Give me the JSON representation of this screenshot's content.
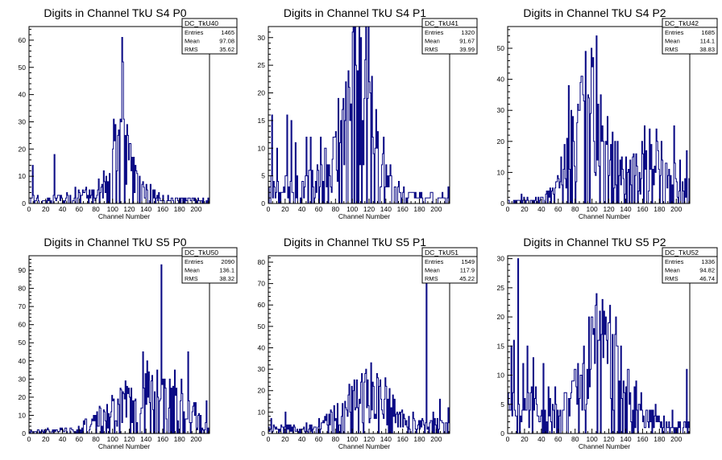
{
  "chart_data": [
    {
      "type": "histogram",
      "title": "Digits in Channel TkU S4 P0",
      "xlabel": "Channel Number",
      "xlim": [
        0,
        216
      ],
      "ylim": [
        0,
        65
      ],
      "x_ticks": [
        0,
        20,
        40,
        60,
        80,
        100,
        120,
        140,
        160,
        180,
        200
      ],
      "y_ticks": [
        0,
        10,
        20,
        30,
        40,
        50,
        60
      ],
      "stats": {
        "name": "DC_TkU40",
        "rows": [
          [
            "Entries",
            "1465"
          ],
          [
            "Mean",
            "97.08"
          ],
          [
            "RMS",
            "35.62"
          ]
        ]
      },
      "bin_width": 1,
      "peaks": [
        [
          4,
          14
        ],
        [
          10,
          3
        ],
        [
          30,
          18
        ],
        [
          45,
          4
        ],
        [
          55,
          6
        ],
        [
          75,
          5
        ],
        [
          90,
          8
        ],
        [
          100,
          20
        ],
        [
          106,
          25
        ],
        [
          110,
          30
        ],
        [
          111,
          61
        ],
        [
          113,
          31
        ],
        [
          120,
          22
        ],
        [
          128,
          12
        ],
        [
          135,
          7
        ],
        [
          150,
          5
        ],
        [
          160,
          3
        ],
        [
          185,
          2
        ],
        [
          214,
          2
        ]
      ],
      "profile": [
        [
          0,
          2
        ],
        [
          15,
          1
        ],
        [
          35,
          2
        ],
        [
          60,
          3
        ],
        [
          80,
          4
        ],
        [
          95,
          12
        ],
        [
          105,
          22
        ],
        [
          112,
          30
        ],
        [
          118,
          20
        ],
        [
          125,
          12
        ],
        [
          135,
          6
        ],
        [
          150,
          3
        ],
        [
          170,
          1.5
        ],
        [
          216,
          1
        ]
      ],
      "line_color": "#000080"
    },
    {
      "type": "histogram",
      "title": "Digits in Channel TkU S4 P1",
      "xlabel": "Channel Number",
      "xlim": [
        0,
        216
      ],
      "ylim": [
        0,
        32
      ],
      "x_ticks": [
        0,
        20,
        40,
        60,
        80,
        100,
        120,
        140,
        160,
        180,
        200
      ],
      "y_ticks": [
        0,
        5,
        10,
        15,
        20,
        25,
        30
      ],
      "stats": {
        "name": "DC_TkU41",
        "rows": [
          [
            "Entries",
            "1320"
          ],
          [
            "Mean",
            "91.67"
          ],
          [
            "RMS",
            "39.99"
          ]
        ]
      },
      "bin_width": 1,
      "peaks": [
        [
          4,
          16
        ],
        [
          10,
          10
        ],
        [
          22,
          16
        ],
        [
          27,
          15
        ],
        [
          32,
          11
        ],
        [
          45,
          12
        ],
        [
          50,
          12
        ],
        [
          62,
          12
        ],
        [
          68,
          10
        ],
        [
          76,
          8
        ],
        [
          83,
          19
        ],
        [
          88,
          17
        ],
        [
          96,
          21
        ],
        [
          104,
          25
        ],
        [
          110,
          30
        ],
        [
          115,
          26
        ],
        [
          120,
          22
        ],
        [
          130,
          13
        ],
        [
          140,
          7
        ],
        [
          150,
          3
        ],
        [
          195,
          2
        ],
        [
          214,
          3
        ]
      ],
      "profile": [
        [
          0,
          3
        ],
        [
          30,
          3
        ],
        [
          60,
          4
        ],
        [
          75,
          8
        ],
        [
          90,
          15
        ],
        [
          105,
          22
        ],
        [
          115,
          24
        ],
        [
          125,
          15
        ],
        [
          135,
          8
        ],
        [
          150,
          3
        ],
        [
          170,
          1
        ],
        [
          216,
          1
        ]
      ],
      "line_color": "#000080"
    },
    {
      "type": "histogram",
      "title": "Digits in Channel TkU S4 P2",
      "xlabel": "Channel Number",
      "xlim": [
        0,
        216
      ],
      "ylim": [
        0,
        57
      ],
      "x_ticks": [
        0,
        20,
        40,
        60,
        80,
        100,
        120,
        140,
        160,
        180,
        200
      ],
      "y_ticks": [
        0,
        10,
        20,
        30,
        40,
        50
      ],
      "stats": {
        "name": "DC_TkU42",
        "rows": [
          [
            "Entries",
            "1685"
          ],
          [
            "Mean",
            "114.1"
          ],
          [
            "RMS",
            "38.83"
          ]
        ]
      },
      "bin_width": 1,
      "peaks": [
        [
          16,
          3
        ],
        [
          45,
          3
        ],
        [
          60,
          8
        ],
        [
          63,
          15
        ],
        [
          72,
          38
        ],
        [
          78,
          20
        ],
        [
          84,
          30
        ],
        [
          90,
          33
        ],
        [
          96,
          34
        ],
        [
          100,
          44
        ],
        [
          105,
          54
        ],
        [
          110,
          35
        ],
        [
          118,
          28
        ],
        [
          127,
          20
        ],
        [
          135,
          15
        ],
        [
          145,
          14
        ],
        [
          162,
          25
        ],
        [
          168,
          24
        ],
        [
          176,
          24
        ],
        [
          182,
          20
        ],
        [
          190,
          9
        ],
        [
          197,
          25
        ],
        [
          204,
          14
        ],
        [
          212,
          17
        ]
      ],
      "profile": [
        [
          0,
          0.5
        ],
        [
          40,
          1.5
        ],
        [
          55,
          4
        ],
        [
          65,
          10
        ],
        [
          80,
          22
        ],
        [
          95,
          30
        ],
        [
          105,
          32
        ],
        [
          115,
          22
        ],
        [
          125,
          13
        ],
        [
          140,
          10
        ],
        [
          160,
          12
        ],
        [
          175,
          12
        ],
        [
          190,
          8
        ],
        [
          205,
          7
        ],
        [
          216,
          6
        ]
      ],
      "line_color": "#000080"
    },
    {
      "type": "histogram",
      "title": "Digits in Channel TkU S5 P0",
      "xlabel": "Channel Number",
      "xlim": [
        0,
        216
      ],
      "ylim": [
        0,
        98
      ],
      "x_ticks": [
        0,
        20,
        40,
        60,
        80,
        100,
        120,
        140,
        160,
        180,
        200
      ],
      "y_ticks": [
        0,
        10,
        20,
        30,
        40,
        50,
        60,
        70,
        80,
        90
      ],
      "stats": {
        "name": "DC_TkU50",
        "rows": [
          [
            "Entries",
            "2090"
          ],
          [
            "Mean",
            "136.1"
          ],
          [
            "RMS",
            "38.32"
          ]
        ]
      },
      "bin_width": 1,
      "peaks": [
        [
          22,
          3
        ],
        [
          50,
          3
        ],
        [
          75,
          8
        ],
        [
          90,
          12
        ],
        [
          100,
          18
        ],
        [
          110,
          24
        ],
        [
          118,
          22
        ],
        [
          126,
          18
        ],
        [
          136,
          45
        ],
        [
          141,
          40
        ],
        [
          147,
          32
        ],
        [
          153,
          35
        ],
        [
          158,
          93
        ],
        [
          163,
          25
        ],
        [
          168,
          30
        ],
        [
          174,
          35
        ],
        [
          182,
          30
        ],
        [
          190,
          45
        ],
        [
          196,
          15
        ],
        [
          202,
          10
        ],
        [
          212,
          18
        ]
      ],
      "profile": [
        [
          0,
          1
        ],
        [
          30,
          1.5
        ],
        [
          55,
          2.5
        ],
        [
          75,
          6
        ],
        [
          95,
          12
        ],
        [
          115,
          17
        ],
        [
          130,
          18
        ],
        [
          145,
          20
        ],
        [
          160,
          18
        ],
        [
          175,
          15
        ],
        [
          190,
          13
        ],
        [
          205,
          8
        ],
        [
          216,
          5
        ]
      ],
      "line_color": "#000080"
    },
    {
      "type": "histogram",
      "title": "Digits in Channel TkU S5 P1",
      "xlabel": "Channel Number",
      "xlim": [
        0,
        216
      ],
      "ylim": [
        0,
        83
      ],
      "x_ticks": [
        0,
        20,
        40,
        60,
        80,
        100,
        120,
        140,
        160,
        180,
        200
      ],
      "y_ticks": [
        0,
        10,
        20,
        30,
        40,
        50,
        60,
        70,
        80
      ],
      "stats": {
        "name": "DC_TkU51",
        "rows": [
          [
            "Entries",
            "1549"
          ],
          [
            "Mean",
            "117.9"
          ],
          [
            "RMS",
            "45.22"
          ]
        ]
      },
      "bin_width": 1,
      "peaks": [
        [
          3,
          7
        ],
        [
          20,
          10
        ],
        [
          30,
          4
        ],
        [
          45,
          5
        ],
        [
          60,
          7
        ],
        [
          82,
          14
        ],
        [
          95,
          18
        ],
        [
          105,
          25
        ],
        [
          110,
          24
        ],
        [
          116,
          30
        ],
        [
          124,
          24
        ],
        [
          132,
          22
        ],
        [
          140,
          22
        ],
        [
          150,
          16
        ],
        [
          158,
          10
        ],
        [
          172,
          10
        ],
        [
          188,
          73
        ],
        [
          196,
          10
        ],
        [
          204,
          16
        ],
        [
          214,
          12
        ]
      ],
      "profile": [
        [
          0,
          2
        ],
        [
          20,
          2.5
        ],
        [
          40,
          2
        ],
        [
          60,
          3
        ],
        [
          80,
          8
        ],
        [
          95,
          13
        ],
        [
          108,
          18
        ],
        [
          120,
          20
        ],
        [
          135,
          17
        ],
        [
          150,
          12
        ],
        [
          165,
          6
        ],
        [
          180,
          4
        ],
        [
          200,
          4
        ],
        [
          216,
          3
        ]
      ],
      "line_color": "#000080"
    },
    {
      "type": "histogram",
      "title": "Digits in Channel TkU S5 P2",
      "xlabel": "Channel Number",
      "xlim": [
        0,
        216
      ],
      "ylim": [
        0,
        30.5
      ],
      "x_ticks": [
        0,
        20,
        40,
        60,
        80,
        100,
        120,
        140,
        160,
        180,
        200
      ],
      "y_ticks": [
        0,
        5,
        10,
        15,
        20,
        25,
        30
      ],
      "stats": {
        "name": "DC_TkU52",
        "rows": [
          [
            "Entries",
            "1336"
          ],
          [
            "Mean",
            "94.82"
          ],
          [
            "RMS",
            "46.74"
          ]
        ]
      },
      "bin_width": 1,
      "peaks": [
        [
          4,
          15
        ],
        [
          7,
          16
        ],
        [
          12,
          30
        ],
        [
          18,
          12
        ],
        [
          23,
          15
        ],
        [
          30,
          13
        ],
        [
          42,
          12
        ],
        [
          48,
          8
        ],
        [
          56,
          8
        ],
        [
          68,
          7
        ],
        [
          78,
          9
        ],
        [
          86,
          10
        ],
        [
          90,
          15
        ],
        [
          96,
          20
        ],
        [
          100,
          20
        ],
        [
          104,
          22
        ],
        [
          112,
          23
        ],
        [
          116,
          20
        ],
        [
          120,
          19
        ],
        [
          128,
          20
        ],
        [
          134,
          15
        ],
        [
          142,
          11
        ],
        [
          152,
          9
        ],
        [
          158,
          7
        ],
        [
          168,
          4
        ],
        [
          175,
          5
        ],
        [
          185,
          3
        ],
        [
          195,
          4
        ],
        [
          202,
          2
        ],
        [
          212,
          11
        ]
      ],
      "profile": [
        [
          0,
          5
        ],
        [
          20,
          5
        ],
        [
          40,
          4
        ],
        [
          60,
          3.5
        ],
        [
          75,
          5
        ],
        [
          90,
          10
        ],
        [
          105,
          15
        ],
        [
          120,
          14
        ],
        [
          135,
          10
        ],
        [
          150,
          5
        ],
        [
          165,
          2.5
        ],
        [
          185,
          1.5
        ],
        [
          205,
          1
        ],
        [
          216,
          1
        ]
      ],
      "line_color": "#000080"
    }
  ]
}
